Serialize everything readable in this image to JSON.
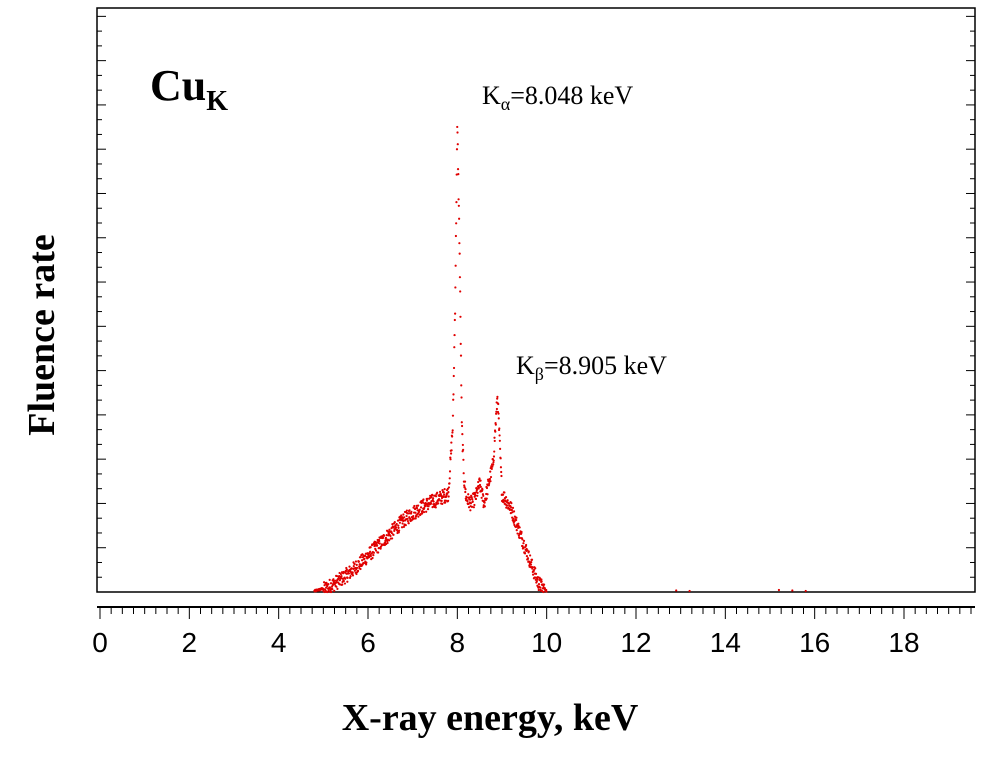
{
  "chart_data": {
    "type": "scatter",
    "title": "",
    "element_label": {
      "base": "Cu",
      "sub": "K"
    },
    "xlabel": "X-ray energy, keV",
    "ylabel": "Fluence rate",
    "xlim": [
      0,
      19.5
    ],
    "ylim": [
      0,
      1
    ],
    "x_ticks": [
      0,
      2,
      4,
      6,
      8,
      10,
      12,
      14,
      16,
      18
    ],
    "x_minor_step": 0.25,
    "y_ticks_shown": false,
    "y_minor_step": 0.03,
    "grid": false,
    "annotations": [
      {
        "base": "K",
        "sub": "α",
        "text": "=8.048 keV",
        "x": 8.048,
        "y": 0.98
      },
      {
        "base": "K",
        "sub": "β",
        "text": "=8.905 keV",
        "x": 8.905,
        "y": 0.4
      }
    ],
    "series": [
      {
        "color": "#e00000",
        "x": [
          4.8,
          5.0,
          5.2,
          5.4,
          5.6,
          5.8,
          6.0,
          6.2,
          6.4,
          6.6,
          6.8,
          7.0,
          7.2,
          7.4,
          7.6,
          7.8,
          7.9,
          7.95,
          8.0,
          8.05,
          8.1,
          8.15,
          8.2,
          8.3,
          8.4,
          8.5,
          8.6,
          8.7,
          8.8,
          8.9,
          9.0,
          9.2,
          9.4,
          9.6,
          9.8,
          10.0,
          10.4,
          12.9,
          13.2,
          15.2,
          15.5,
          15.8
        ],
        "y": [
          0.0,
          0.005,
          0.014,
          0.026,
          0.04,
          0.056,
          0.074,
          0.092,
          0.11,
          0.128,
          0.146,
          0.16,
          0.172,
          0.182,
          0.19,
          0.2,
          0.34,
          0.58,
          0.95,
          0.7,
          0.34,
          0.23,
          0.19,
          0.18,
          0.19,
          0.22,
          0.18,
          0.22,
          0.26,
          0.4,
          0.2,
          0.17,
          0.12,
          0.07,
          0.02,
          0.0,
          0.002,
          0.003,
          0.002,
          0.004,
          0.003,
          0.002
        ]
      }
    ]
  }
}
